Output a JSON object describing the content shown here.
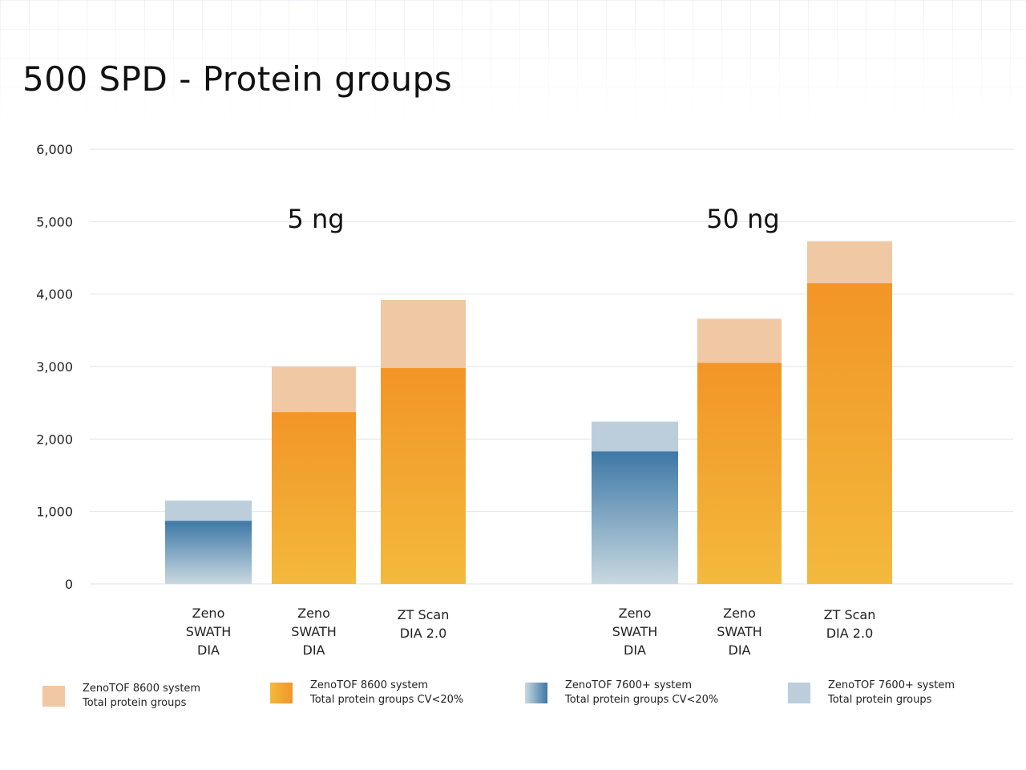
{
  "title": "500 SPD - Protein groups",
  "colors": {
    "peach": "#f0c8a3",
    "orange_top": "#f29527",
    "orange_bottom": "#f3b93c",
    "blue_top": "#3d78a6",
    "blue_bottom": "#c9d8e0",
    "light_blue": "#bccddb",
    "grid": "#e2e2e2"
  },
  "legend": [
    {
      "line1": "ZenoTOF 8600 system",
      "line2": "Total protein groups",
      "swatch": "peach"
    },
    {
      "line1": "ZenoTOF 8600 system",
      "line2": "Total protein groups CV<20%",
      "swatch": "orange"
    },
    {
      "line1": "ZenoTOF 7600+ system",
      "line2": "Total protein groups CV<20%",
      "swatch": "blue"
    },
    {
      "line1": "ZenoTOF 7600+ system",
      "line2": "Total protein groups",
      "swatch": "lightblue"
    }
  ],
  "chart_data": {
    "type": "bar",
    "ylim": [
      0,
      6000
    ],
    "yticks": [
      "0",
      "1,000",
      "2,000",
      "3,000",
      "4,000",
      "5,000",
      "6,000"
    ],
    "grid": true,
    "groups": [
      {
        "label": "5 ng",
        "bars": [
          {
            "label": [
              "Zeno",
              "SWATH",
              "DIA"
            ],
            "system": "ZenoTOF 7600+ system",
            "total": 1150,
            "cv20": 870
          },
          {
            "label": [
              "Zeno",
              "SWATH",
              "DIA"
            ],
            "system": "ZenoTOF 8600 system",
            "total": 3000,
            "cv20": 2370
          },
          {
            "label": [
              "ZT Scan",
              "DIA 2.0"
            ],
            "system": "ZenoTOF 8600 system",
            "total": 3920,
            "cv20": 2980
          }
        ]
      },
      {
        "label": "50 ng",
        "bars": [
          {
            "label": [
              "Zeno",
              "SWATH",
              "DIA"
            ],
            "system": "ZenoTOF 7600+ system",
            "total": 2240,
            "cv20": 1830
          },
          {
            "label": [
              "Zeno",
              "SWATH",
              "DIA"
            ],
            "system": "ZenoTOF 8600 system",
            "total": 3660,
            "cv20": 3050
          },
          {
            "label": [
              "ZT Scan",
              "DIA 2.0"
            ],
            "system": "ZenoTOF 8600 system",
            "total": 4730,
            "cv20": 4150
          }
        ]
      }
    ]
  }
}
